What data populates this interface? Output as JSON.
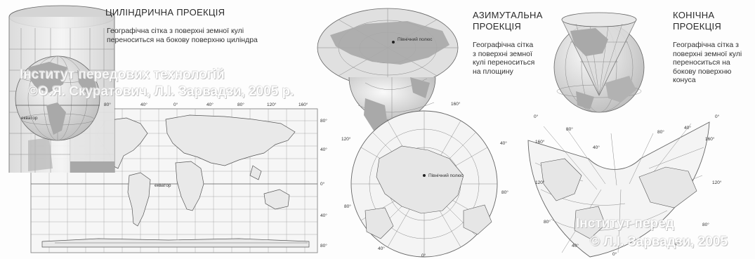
{
  "cylindrical": {
    "title": "ЦИЛІНДРИЧНА ПРОЕКЦІЯ",
    "description": "Географічна сітка з поверхні земної кулі переноситься на бокову поверхню циліндра",
    "equator_globe": "екватор",
    "equator_map": "екватор",
    "lon_labels": [
      "80°",
      "40°",
      "0°",
      "40°",
      "80°",
      "120°",
      "160°"
    ],
    "lat_labels": [
      "80°",
      "40°",
      "0°",
      "40°",
      "80°"
    ]
  },
  "azimuthal": {
    "title_line1": "АЗИМУТАЛЬНА",
    "title_line2": "ПРОЕКЦІЯ",
    "description": "Географічна сітка з поверхні земної кулі переноситься на площину",
    "pole_globe": "Північний полюс",
    "pole_map": "Північний полюс",
    "labels": [
      "160°",
      "120°",
      "40°",
      "80°",
      "80°",
      "40°",
      "0°"
    ]
  },
  "conic": {
    "title_line1": "КОНІЧНА",
    "title_line2": "ПРОЕКЦІЯ",
    "description": "Географічна сітка з поверхні земної кулі переноситься на бокову поверхню конуса",
    "labels": [
      "0°",
      "0°",
      "160°",
      "160°",
      "80°",
      "80°",
      "40°",
      "40°",
      "120°",
      "120°",
      "80°",
      "80°",
      "40°",
      "40°",
      "0°"
    ]
  },
  "watermarks": {
    "line1": "Інститут передових технологій",
    "line2": "©О.Я. Скуратович, Л.І. Зарвадзи, 2005 р.",
    "line3": "Інститут перед",
    "line4": "© Л.І. Зарвадзи, 2005"
  },
  "colors": {
    "land": "#bfbfbf",
    "grid": "#8a8a8a",
    "ocean": "#f2f2f2",
    "shade": "#cfcfcf"
  }
}
